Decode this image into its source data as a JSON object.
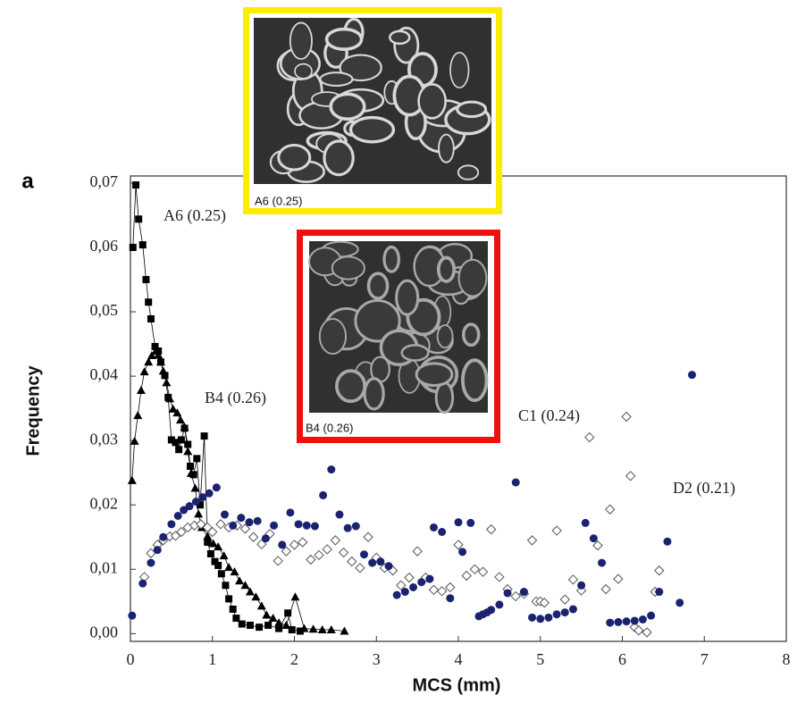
{
  "chart_data": {
    "type": "scatter",
    "panel_label": "a",
    "x_label": "MCS (mm)",
    "y_label": "Frequency",
    "xlim": [
      0,
      8
    ],
    "ylim": [
      -0.0012,
      0.0711
    ],
    "xticks": [
      0,
      1,
      2,
      3,
      4,
      5,
      6,
      7,
      8
    ],
    "yticks": [
      {
        "value": 0,
        "label": "0,00"
      },
      {
        "value": 0.01,
        "label": "0,01"
      },
      {
        "value": 0.02,
        "label": "0,02"
      },
      {
        "value": 0.03,
        "label": "0,03"
      },
      {
        "value": 0.04,
        "label": "0,04"
      },
      {
        "value": 0.05,
        "label": "0,05"
      },
      {
        "value": 0.06,
        "label": "0,06"
      },
      {
        "value": 0.07,
        "label": "0,07"
      }
    ],
    "series": [
      {
        "name": "A6 (0.25)",
        "marker": "square",
        "color": "#000000",
        "line": true,
        "x": [
          0.03,
          0.066,
          0.1,
          0.15,
          0.19,
          0.22,
          0.25,
          0.3,
          0.34,
          0.37,
          0.42,
          0.46,
          0.5,
          0.55,
          0.59,
          0.62,
          0.66,
          0.7,
          0.73,
          0.77,
          0.81,
          0.85,
          0.9,
          0.94,
          0.98,
          1.03,
          1.07,
          1.11,
          1.16,
          1.2,
          1.25,
          1.29,
          1.36,
          1.46,
          1.57,
          1.68,
          1.81,
          1.92,
          1.97,
          2.07
        ],
        "values": [
          0.06,
          0.0697,
          0.0644,
          0.0604,
          0.055,
          0.0515,
          0.0489,
          0.0446,
          0.0439,
          0.0422,
          0.0401,
          0.0367,
          0.0301,
          0.0297,
          0.0286,
          0.0301,
          0.0319,
          0.0294,
          0.026,
          0.0247,
          0.0272,
          0.02,
          0.0307,
          0.0142,
          0.0124,
          0.0112,
          0.0106,
          0.0093,
          0.0075,
          0.0054,
          0.0038,
          0.0024,
          0.0015,
          0.0013,
          0.001,
          0.0013,
          0.0008,
          0.0032,
          0.0006,
          0.0004
        ]
      },
      {
        "name": "B4 (0.26)",
        "marker": "triangle",
        "color": "#000000",
        "line": true,
        "x": [
          0.02,
          0.05,
          0.09,
          0.13,
          0.17,
          0.22,
          0.26,
          0.31,
          0.34,
          0.37,
          0.4,
          0.44,
          0.48,
          0.52,
          0.57,
          0.61,
          0.66,
          0.7,
          0.74,
          0.79,
          0.83,
          0.87,
          0.94,
          1.01,
          1.07,
          1.14,
          1.2,
          1.27,
          1.33,
          1.4,
          1.46,
          1.53,
          1.6,
          1.66,
          1.74,
          1.81,
          1.9,
          2.01,
          2.12,
          2.23,
          2.34,
          2.45,
          2.61
        ],
        "values": [
          0.0238,
          0.0299,
          0.0339,
          0.0378,
          0.0407,
          0.0422,
          0.0432,
          0.0439,
          0.0433,
          0.0422,
          0.0408,
          0.039,
          0.0365,
          0.0349,
          0.0343,
          0.0332,
          0.0321,
          0.0283,
          0.0249,
          0.0226,
          0.0186,
          0.0165,
          0.0151,
          0.014,
          0.0135,
          0.0121,
          0.0103,
          0.0096,
          0.0082,
          0.0075,
          0.0065,
          0.0057,
          0.0043,
          0.0029,
          0.0024,
          0.0017,
          0.0013,
          0.0057,
          0.0008,
          0.0007,
          0.0006,
          0.0006,
          0.0004
        ]
      },
      {
        "name": "C1 (0.24)",
        "marker": "diamond",
        "color": "#555555",
        "line": false,
        "x": [
          0.17,
          0.25,
          0.33,
          0.4,
          0.48,
          0.55,
          0.62,
          0.7,
          0.78,
          0.86,
          0.94,
          1.0,
          1.1,
          1.2,
          1.3,
          1.4,
          1.5,
          1.6,
          1.7,
          1.8,
          1.9,
          2.0,
          2.1,
          2.2,
          2.3,
          2.4,
          2.5,
          2.6,
          2.7,
          2.8,
          2.9,
          3.0,
          3.1,
          3.2,
          3.3,
          3.4,
          3.5,
          3.6,
          3.7,
          3.8,
          3.9,
          4.0,
          4.1,
          4.2,
          4.3,
          4.4,
          4.5,
          4.6,
          4.7,
          4.8,
          4.9,
          4.95,
          5.0,
          5.05,
          5.2,
          5.3,
          5.4,
          5.5,
          5.6,
          5.7,
          5.8,
          5.85,
          5.95,
          6.05,
          6.1,
          6.15,
          6.2,
          6.3,
          6.4,
          6.45
        ],
        "values": [
          0.0088,
          0.0125,
          0.0138,
          0.0145,
          0.0151,
          0.0152,
          0.0158,
          0.0165,
          0.0168,
          0.017,
          0.0165,
          0.0158,
          0.017,
          0.0165,
          0.0168,
          0.0163,
          0.015,
          0.0139,
          0.0155,
          0.0113,
          0.0128,
          0.0138,
          0.0142,
          0.0115,
          0.0122,
          0.0131,
          0.0145,
          0.0126,
          0.0112,
          0.0102,
          0.015,
          0.0118,
          0.0102,
          0.0098,
          0.0075,
          0.0087,
          0.0128,
          0.0087,
          0.0068,
          0.0066,
          0.0072,
          0.0138,
          0.009,
          0.01,
          0.0096,
          0.0162,
          0.0088,
          0.0069,
          0.0058,
          0.0062,
          0.0145,
          0.005,
          0.005,
          0.0048,
          0.016,
          0.0053,
          0.0084,
          0.0067,
          0.0305,
          0.0137,
          0.0069,
          0.0193,
          0.0085,
          0.0337,
          0.0245,
          0.001,
          0.0005,
          0.0002,
          0.0065,
          0.0098
        ]
      },
      {
        "name": "D2 (0.21)",
        "marker": "circle",
        "color": "#1b2370",
        "line": false,
        "x": [
          0.02,
          0.15,
          0.25,
          0.33,
          0.4,
          0.5,
          0.58,
          0.65,
          0.72,
          0.8,
          0.88,
          0.96,
          1.05,
          1.15,
          1.25,
          1.35,
          1.45,
          1.55,
          1.65,
          1.75,
          1.85,
          1.95,
          2.05,
          2.15,
          2.25,
          2.35,
          2.45,
          2.55,
          2.65,
          2.75,
          2.85,
          2.95,
          3.05,
          3.15,
          3.25,
          3.35,
          3.45,
          3.55,
          3.65,
          3.7,
          3.8,
          3.9,
          4.0,
          4.05,
          4.15,
          4.25,
          4.3,
          4.35,
          4.4,
          4.5,
          4.6,
          4.7,
          4.8,
          4.9,
          5.0,
          5.1,
          5.2,
          5.3,
          5.4,
          5.5,
          5.55,
          5.65,
          5.75,
          5.85,
          5.95,
          6.05,
          6.15,
          6.25,
          6.35,
          6.45,
          6.55,
          6.7,
          6.85
        ],
        "values": [
          0.0028,
          0.0078,
          0.011,
          0.013,
          0.015,
          0.017,
          0.0183,
          0.0192,
          0.0198,
          0.0205,
          0.0212,
          0.0218,
          0.0227,
          0.0185,
          0.0168,
          0.018,
          0.0173,
          0.0175,
          0.0148,
          0.0168,
          0.0138,
          0.0188,
          0.017,
          0.0168,
          0.0167,
          0.0215,
          0.0255,
          0.0185,
          0.0164,
          0.0167,
          0.0123,
          0.011,
          0.0112,
          0.0105,
          0.006,
          0.0065,
          0.0072,
          0.008,
          0.0085,
          0.0165,
          0.0158,
          0.0055,
          0.0173,
          0.0127,
          0.0172,
          0.0027,
          0.003,
          0.0033,
          0.0037,
          0.0045,
          0.0063,
          0.0235,
          0.0065,
          0.0025,
          0.0023,
          0.0025,
          0.003,
          0.0033,
          0.0038,
          0.0075,
          0.0172,
          0.0148,
          0.011,
          0.0017,
          0.0018,
          0.0019,
          0.002,
          0.0022,
          0.0028,
          0.0065,
          0.0143,
          0.0048,
          0.0402
        ]
      }
    ],
    "insets": [
      {
        "caption": "A6 (0.25)",
        "border": "#ffeb00"
      },
      {
        "caption": "B4 (0.26)",
        "border": "#ee1111"
      }
    ]
  }
}
